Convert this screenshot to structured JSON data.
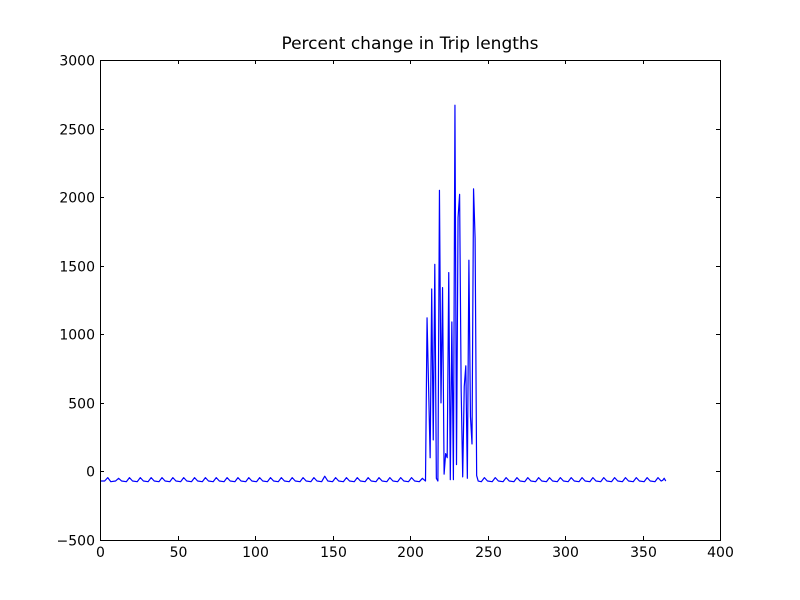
{
  "chart_data": {
    "type": "line",
    "title": "Percent change in Trip lengths",
    "xlabel": "",
    "ylabel": "",
    "xlim": [
      0,
      400
    ],
    "ylim": [
      -500,
      3000
    ],
    "x_ticks": [
      "0",
      "50",
      "100",
      "150",
      "200",
      "250",
      "300",
      "350",
      "400"
    ],
    "y_ticks": [
      "−500",
      "0",
      "500",
      "1000",
      "1500",
      "2000",
      "2500",
      "3000"
    ],
    "grid": false,
    "line_color": "#0000ff",
    "series": [
      {
        "points": [
          [
            0,
            -70
          ],
          [
            3,
            -70
          ],
          [
            5,
            -45
          ],
          [
            7,
            -75
          ],
          [
            10,
            -70
          ],
          [
            12,
            -50
          ],
          [
            14,
            -70
          ],
          [
            17,
            -75
          ],
          [
            19,
            -45
          ],
          [
            21,
            -70
          ],
          [
            24,
            -75
          ],
          [
            26,
            -45
          ],
          [
            28,
            -70
          ],
          [
            31,
            -75
          ],
          [
            33,
            -45
          ],
          [
            35,
            -70
          ],
          [
            38,
            -75
          ],
          [
            40,
            -45
          ],
          [
            42,
            -70
          ],
          [
            45,
            -75
          ],
          [
            47,
            -45
          ],
          [
            49,
            -70
          ],
          [
            52,
            -75
          ],
          [
            54,
            -45
          ],
          [
            56,
            -70
          ],
          [
            59,
            -75
          ],
          [
            61,
            -45
          ],
          [
            63,
            -70
          ],
          [
            66,
            -75
          ],
          [
            68,
            -45
          ],
          [
            70,
            -70
          ],
          [
            73,
            -75
          ],
          [
            75,
            -45
          ],
          [
            77,
            -70
          ],
          [
            80,
            -75
          ],
          [
            82,
            -45
          ],
          [
            84,
            -70
          ],
          [
            87,
            -75
          ],
          [
            89,
            -45
          ],
          [
            91,
            -70
          ],
          [
            94,
            -75
          ],
          [
            96,
            -45
          ],
          [
            98,
            -70
          ],
          [
            101,
            -75
          ],
          [
            103,
            -45
          ],
          [
            105,
            -70
          ],
          [
            108,
            -75
          ],
          [
            110,
            -45
          ],
          [
            112,
            -70
          ],
          [
            115,
            -75
          ],
          [
            117,
            -45
          ],
          [
            119,
            -70
          ],
          [
            122,
            -75
          ],
          [
            124,
            -45
          ],
          [
            126,
            -70
          ],
          [
            129,
            -75
          ],
          [
            131,
            -45
          ],
          [
            133,
            -70
          ],
          [
            136,
            -75
          ],
          [
            138,
            -45
          ],
          [
            140,
            -70
          ],
          [
            143,
            -75
          ],
          [
            145,
            -35
          ],
          [
            147,
            -70
          ],
          [
            150,
            -75
          ],
          [
            152,
            -45
          ],
          [
            154,
            -70
          ],
          [
            157,
            -75
          ],
          [
            159,
            -45
          ],
          [
            161,
            -70
          ],
          [
            164,
            -75
          ],
          [
            166,
            -45
          ],
          [
            168,
            -70
          ],
          [
            171,
            -75
          ],
          [
            173,
            -45
          ],
          [
            175,
            -70
          ],
          [
            178,
            -75
          ],
          [
            180,
            -45
          ],
          [
            182,
            -70
          ],
          [
            185,
            -75
          ],
          [
            187,
            -45
          ],
          [
            189,
            -70
          ],
          [
            192,
            -75
          ],
          [
            194,
            -45
          ],
          [
            196,
            -70
          ],
          [
            199,
            -75
          ],
          [
            201,
            -45
          ],
          [
            203,
            -70
          ],
          [
            206,
            -75
          ],
          [
            208,
            -50
          ],
          [
            210,
            -70
          ],
          [
            211,
            1120
          ],
          [
            213,
            100
          ],
          [
            214,
            1330
          ],
          [
            215,
            230
          ],
          [
            216,
            1510
          ],
          [
            217,
            -50
          ],
          [
            218,
            -70
          ],
          [
            219,
            2050
          ],
          [
            220,
            500
          ],
          [
            221,
            1340
          ],
          [
            222,
            -20
          ],
          [
            223,
            130
          ],
          [
            224,
            100
          ],
          [
            225,
            1450
          ],
          [
            226,
            -60
          ],
          [
            227,
            1090
          ],
          [
            228,
            -60
          ],
          [
            229,
            2670
          ],
          [
            230,
            50
          ],
          [
            231,
            1850
          ],
          [
            232,
            2020
          ],
          [
            233,
            600
          ],
          [
            234,
            -40
          ],
          [
            235,
            620
          ],
          [
            236,
            770
          ],
          [
            237,
            -50
          ],
          [
            238,
            1540
          ],
          [
            239,
            400
          ],
          [
            240,
            200
          ],
          [
            241,
            2060
          ],
          [
            242,
            1700
          ],
          [
            243,
            -30
          ],
          [
            244,
            -70
          ],
          [
            246,
            -75
          ],
          [
            248,
            -45
          ],
          [
            250,
            -70
          ],
          [
            253,
            -75
          ],
          [
            255,
            -45
          ],
          [
            257,
            -70
          ],
          [
            260,
            -75
          ],
          [
            262,
            -45
          ],
          [
            264,
            -70
          ],
          [
            267,
            -75
          ],
          [
            269,
            -45
          ],
          [
            271,
            -70
          ],
          [
            274,
            -75
          ],
          [
            276,
            -45
          ],
          [
            278,
            -70
          ],
          [
            281,
            -75
          ],
          [
            283,
            -45
          ],
          [
            285,
            -70
          ],
          [
            288,
            -75
          ],
          [
            290,
            -45
          ],
          [
            292,
            -70
          ],
          [
            295,
            -75
          ],
          [
            297,
            -45
          ],
          [
            299,
            -70
          ],
          [
            302,
            -75
          ],
          [
            304,
            -45
          ],
          [
            306,
            -70
          ],
          [
            309,
            -75
          ],
          [
            311,
            -45
          ],
          [
            313,
            -70
          ],
          [
            316,
            -75
          ],
          [
            318,
            -45
          ],
          [
            320,
            -70
          ],
          [
            323,
            -75
          ],
          [
            325,
            -45
          ],
          [
            327,
            -70
          ],
          [
            330,
            -75
          ],
          [
            332,
            -45
          ],
          [
            334,
            -70
          ],
          [
            337,
            -75
          ],
          [
            339,
            -45
          ],
          [
            341,
            -70
          ],
          [
            344,
            -75
          ],
          [
            346,
            -45
          ],
          [
            348,
            -70
          ],
          [
            351,
            -75
          ],
          [
            353,
            -45
          ],
          [
            355,
            -70
          ],
          [
            358,
            -75
          ],
          [
            360,
            -45
          ],
          [
            362,
            -70
          ],
          [
            363,
            -65
          ],
          [
            364,
            -50
          ],
          [
            365,
            -70
          ]
        ]
      }
    ]
  }
}
